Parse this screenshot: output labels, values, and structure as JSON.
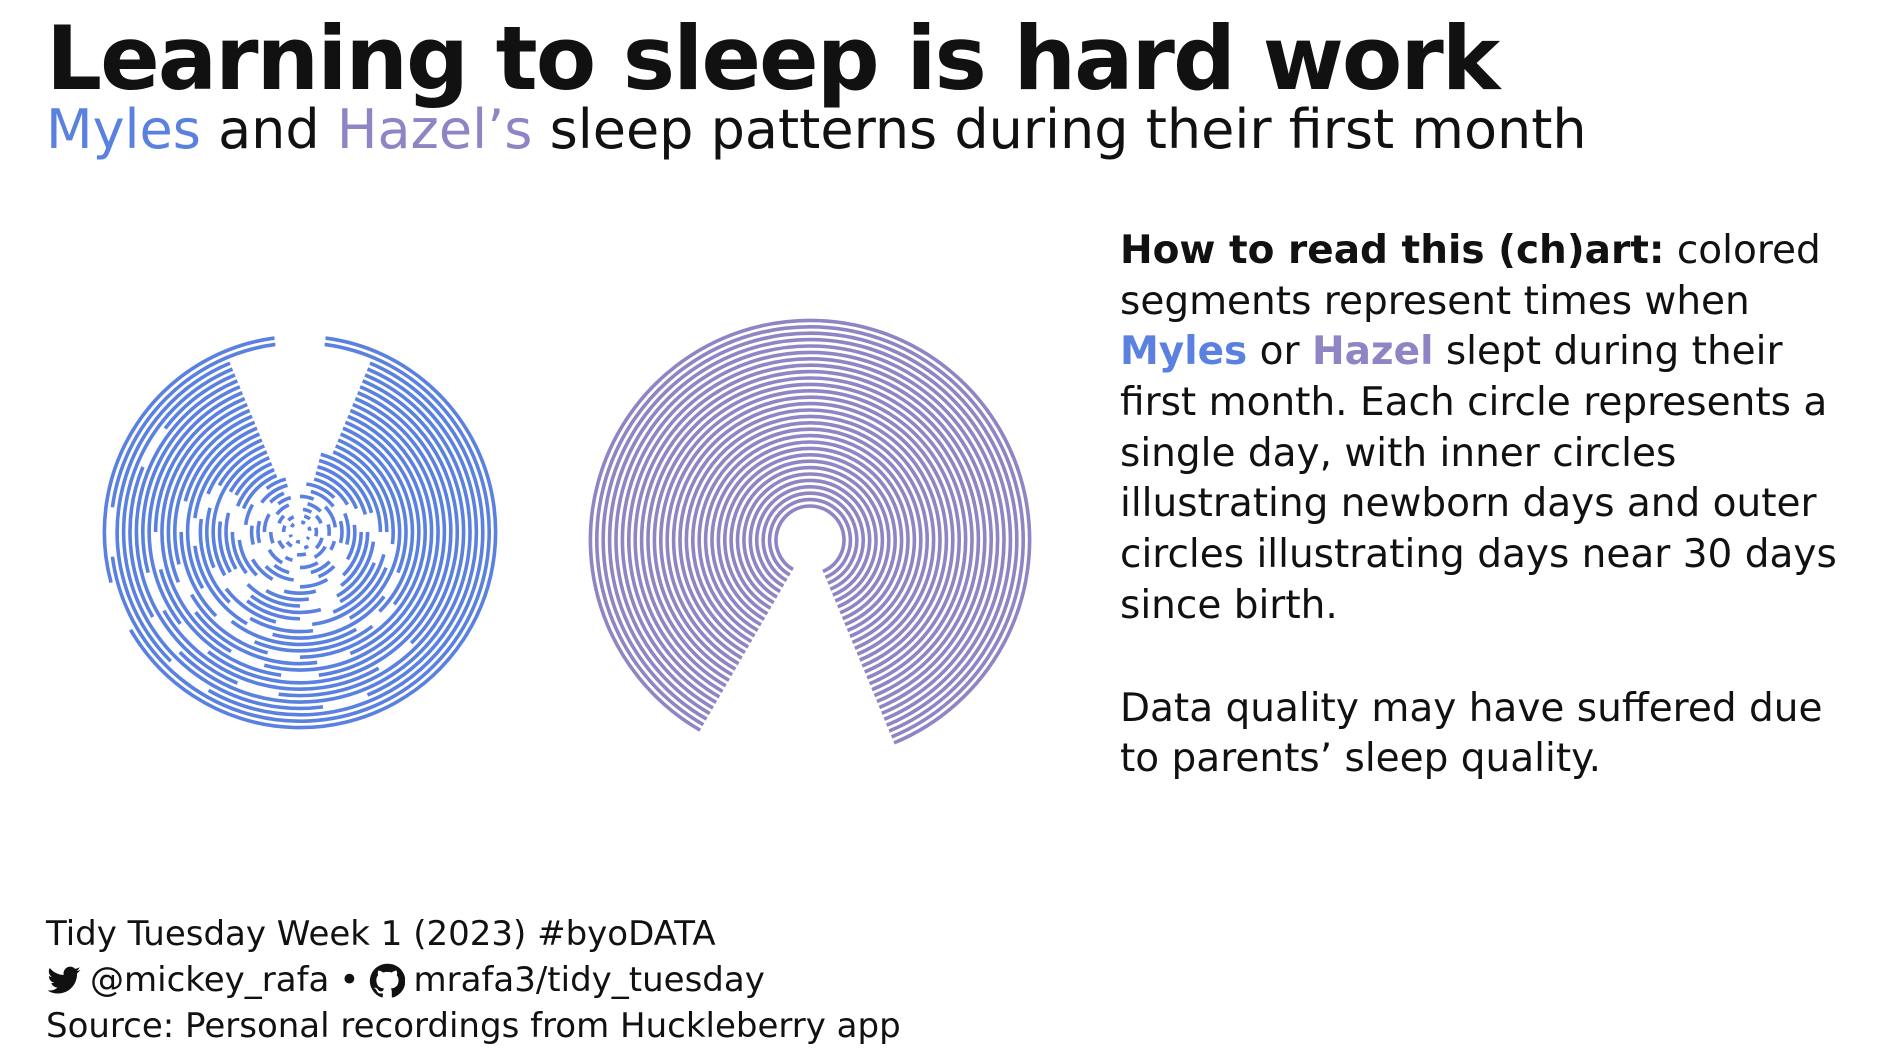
{
  "title": "Learning to sleep is hard work",
  "subtitle": {
    "name1": "Myles",
    "and": " and ",
    "name2": "Hazel’s",
    "rest": " sleep patterns during their first month"
  },
  "explanation": {
    "lead": "How to read this (ch)art:",
    "p1a": " colored segments represent times when ",
    "name1": "Myles",
    "or": " or ",
    "name2": "Hazel",
    "p1b": " slept during their first month. Each circle represents a single day, with inner circles illustrating newborn days and outer circles illustrating days near 30 days since birth.",
    "p2": "Data quality may have suffered due to parents’ sleep quality."
  },
  "caption": {
    "line1": "Tidy Tuesday Week 1 (2023) #byoDATA",
    "twitter_handle": "@mickey_rafa",
    "separator": "•",
    "github_repo": "mrafa3/tidy_tuesday",
    "source": "Source: Personal recordings from Huckleberry app",
    "icons": [
      "twitter-bird-icon",
      "github-octocat-icon"
    ]
  },
  "colors": {
    "myles": "#5a80e0",
    "hazel": "#8f85c4",
    "text": "#111111"
  },
  "chart_data": {
    "type": "radial-sleep",
    "days": 30,
    "units": "day since birth (ring) / hour of day (angle, midnight at top, clockwise)",
    "series": [
      {
        "name": "Myles",
        "color": "#5a80e0",
        "rings": [
          [
            [
              0.5,
              2
            ],
            [
              4,
              5.5
            ],
            [
              8,
              9
            ],
            [
              12,
              13.5
            ],
            [
              16,
              17
            ],
            [
              20,
              21.5
            ]
          ],
          [
            [
              1,
              2.5
            ],
            [
              5,
              7
            ],
            [
              10,
              11
            ],
            [
              14,
              15.5
            ],
            [
              18,
              19.5
            ],
            [
              21,
              22.5
            ]
          ],
          [
            [
              0.5,
              2
            ],
            [
              3,
              4.5
            ],
            [
              7,
              9
            ],
            [
              11,
              12.5
            ],
            [
              15,
              16.5
            ],
            [
              19.5,
              21
            ]
          ],
          [
            [
              1,
              3
            ],
            [
              5,
              6.5
            ],
            [
              8,
              10
            ],
            [
              13,
              14
            ],
            [
              16.5,
              18
            ],
            [
              20.5,
              22.5
            ]
          ],
          [
            [
              0,
              1.5
            ],
            [
              3,
              5.5
            ],
            [
              7,
              8
            ],
            [
              10,
              12
            ],
            [
              14,
              16
            ],
            [
              18,
              20
            ],
            [
              21.5,
              23
            ]
          ],
          [
            [
              1,
              3.5
            ],
            [
              5,
              7
            ],
            [
              9,
              11
            ],
            [
              13,
              14.5
            ],
            [
              17,
              19
            ],
            [
              21,
              22.5
            ]
          ],
          [
            [
              0.5,
              3
            ],
            [
              4.5,
              7
            ],
            [
              9,
              10.5
            ],
            [
              12.5,
              15
            ],
            [
              17,
              18.5
            ],
            [
              20.5,
              23
            ]
          ],
          [
            [
              1,
              4
            ],
            [
              5.5,
              8
            ],
            [
              10,
              12
            ],
            [
              14,
              16
            ],
            [
              18.5,
              20
            ],
            [
              21.5,
              23
            ]
          ],
          [
            [
              1,
              4.5
            ],
            [
              6,
              9
            ],
            [
              11,
              13
            ],
            [
              15,
              17.5
            ],
            [
              19.5,
              22.5
            ]
          ],
          [
            [
              1,
              5
            ],
            [
              6,
              9.5
            ],
            [
              11.5,
              14
            ],
            [
              15.5,
              18
            ],
            [
              19.5,
              22.5
            ]
          ],
          [
            [
              1,
              5
            ],
            [
              6.5,
              10
            ],
            [
              12,
              15
            ],
            [
              16,
              19
            ],
            [
              20,
              22.5
            ]
          ],
          [
            [
              1,
              6
            ],
            [
              7.5,
              10
            ],
            [
              11,
              14.5
            ],
            [
              16,
              18.5
            ],
            [
              20,
              22.5
            ]
          ],
          [
            [
              1.5,
              6
            ],
            [
              7,
              10.5
            ],
            [
              12,
              14.5
            ],
            [
              16,
              22.5
            ]
          ],
          [
            [
              1.5,
              6.5
            ],
            [
              7.5,
              11.5
            ],
            [
              13,
              15.5
            ],
            [
              16.5,
              19
            ],
            [
              20,
              22.5
            ]
          ],
          [
            [
              1.5,
              10
            ],
            [
              11.5,
              14
            ],
            [
              15,
              18.5
            ],
            [
              19.5,
              22.5
            ]
          ],
          [
            [
              1.5,
              7.5
            ],
            [
              8.5,
              13
            ],
            [
              14,
              17.5
            ],
            [
              18.5,
              22.5
            ]
          ],
          [
            [
              1.5,
              9
            ],
            [
              10,
              14.5
            ],
            [
              16,
              22.5
            ]
          ],
          [
            [
              1.5,
              8.5
            ],
            [
              9.5,
              13.5
            ],
            [
              15,
              18
            ],
            [
              19,
              22.5
            ]
          ],
          [
            [
              1.5,
              12
            ],
            [
              13,
              16
            ],
            [
              17,
              22.5
            ]
          ],
          [
            [
              1.5,
              10.5
            ],
            [
              11.5,
              15.5
            ],
            [
              16.5,
              22.5
            ]
          ],
          [
            [
              1.5,
              13
            ],
            [
              14,
              22.5
            ]
          ],
          [
            [
              1.5,
              11.5
            ],
            [
              12.5,
              17
            ],
            [
              18,
              22.5
            ]
          ],
          [
            [
              1.5,
              14.5
            ],
            [
              15.5,
              22.5
            ]
          ],
          [
            [
              1.5,
              9
            ],
            [
              10,
              16
            ],
            [
              17,
              22.5
            ]
          ],
          [
            [
              1.5,
              12.5
            ],
            [
              13.5,
              22.5
            ]
          ],
          [
            [
              1.5,
              15
            ],
            [
              16,
              19.5
            ],
            [
              20.5,
              22.5
            ]
          ],
          [
            [
              1.5,
              10.5
            ],
            [
              11.5,
              22.5
            ]
          ],
          [
            [
              1.5,
              14
            ],
            [
              15,
              22.5
            ]
          ],
          [
            [
              0.5,
              17.5
            ],
            [
              18.5,
              23.5
            ]
          ],
          [
            [
              0.5,
              16
            ],
            [
              17,
              23.5
            ]
          ]
        ]
      },
      {
        "name": "Hazel",
        "color": "#8f85c4",
        "rings": [
          [
            [
              14,
              24
            ],
            [
              0,
              10.5
            ]
          ],
          [
            [
              14,
              24
            ],
            [
              0,
              10.5
            ]
          ],
          [
            [
              14,
              24
            ],
            [
              0,
              10.5
            ]
          ],
          [
            [
              14,
              24
            ],
            [
              0,
              10.5
            ]
          ],
          [
            [
              14,
              24
            ],
            [
              0,
              10.5
            ]
          ],
          [
            [
              14,
              24
            ],
            [
              0,
              10.5
            ]
          ],
          [
            [
              14,
              24
            ],
            [
              0,
              10.5
            ]
          ],
          [
            [
              14,
              24
            ],
            [
              0,
              10.5
            ]
          ],
          [
            [
              14,
              24
            ],
            [
              0,
              10.5
            ]
          ],
          [
            [
              14,
              24
            ],
            [
              0,
              10.5
            ]
          ],
          [
            [
              14,
              24
            ],
            [
              0,
              10.5
            ]
          ],
          [
            [
              14,
              24
            ],
            [
              0,
              10.5
            ]
          ],
          [
            [
              14,
              24
            ],
            [
              0,
              10.5
            ]
          ],
          [
            [
              14,
              24
            ],
            [
              0,
              10.5
            ]
          ],
          [
            [
              14,
              24
            ],
            [
              0,
              10.5
            ]
          ],
          [
            [
              14,
              24
            ],
            [
              0,
              10.5
            ]
          ],
          [
            [
              14,
              24
            ],
            [
              0,
              10.5
            ]
          ],
          [
            [
              14,
              24
            ],
            [
              0,
              10.5
            ]
          ],
          [
            [
              14,
              24
            ],
            [
              0,
              10.5
            ]
          ],
          [
            [
              14,
              24
            ],
            [
              0,
              10.5
            ]
          ],
          [
            [
              14,
              24
            ],
            [
              0,
              10.5
            ]
          ],
          [
            [
              14,
              24
            ],
            [
              0,
              10.5
            ]
          ],
          [
            [
              14,
              24
            ],
            [
              0,
              10.5
            ]
          ],
          [
            [
              14,
              24
            ],
            [
              0,
              10.5
            ]
          ],
          [
            [
              14,
              24
            ],
            [
              0,
              10.5
            ]
          ],
          [
            [
              14,
              24
            ],
            [
              0,
              10.5
            ]
          ],
          [
            [
              14,
              24
            ],
            [
              0,
              10.5
            ]
          ],
          [
            [
              14,
              24
            ],
            [
              0,
              10.5
            ]
          ],
          [
            [
              14,
              24
            ],
            [
              0,
              10.5
            ]
          ],
          [
            [
              14,
              24
            ],
            [
              0,
              10.5
            ]
          ]
        ]
      }
    ]
  }
}
